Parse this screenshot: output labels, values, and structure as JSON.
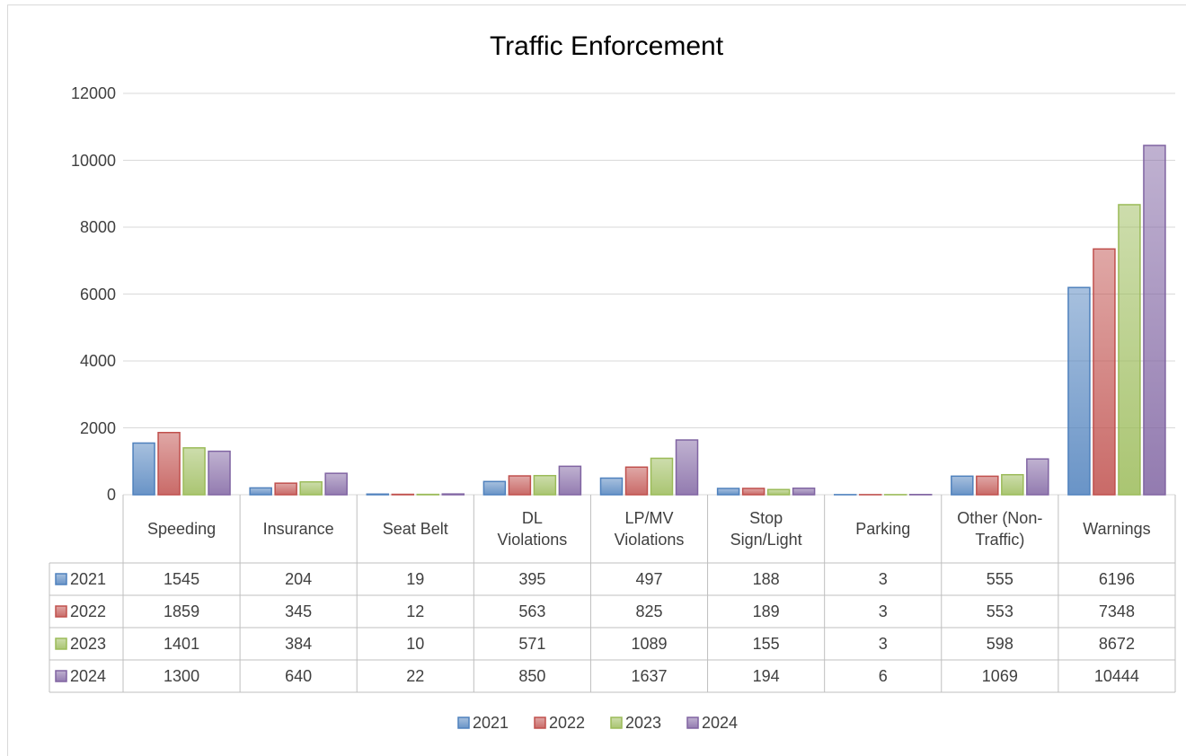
{
  "chart_data": {
    "type": "bar",
    "title": "Traffic Enforcement",
    "categories": [
      "Speeding",
      "Insurance",
      "Seat Belt",
      "DL Violations",
      "LP/MV Violations",
      "Stop Sign/Light",
      "Parking",
      "Other (Non-Traffic)",
      "Warnings"
    ],
    "series": [
      {
        "name": "2021",
        "color": "#4f81bd",
        "values": [
          1545,
          204,
          19,
          395,
          497,
          188,
          3,
          555,
          6196
        ]
      },
      {
        "name": "2022",
        "color": "#c0504d",
        "values": [
          1859,
          345,
          12,
          563,
          825,
          189,
          3,
          553,
          7348
        ]
      },
      {
        "name": "2023",
        "color": "#9bbb59",
        "values": [
          1401,
          384,
          10,
          571,
          1089,
          155,
          3,
          598,
          8672
        ]
      },
      {
        "name": "2024",
        "color": "#8064a2",
        "values": [
          1300,
          640,
          22,
          850,
          1637,
          194,
          6,
          1069,
          10444
        ]
      }
    ],
    "ylim": [
      0,
      12000
    ],
    "yticks": [
      0,
      2000,
      4000,
      6000,
      8000,
      10000,
      12000
    ],
    "grid": true,
    "legend": "bottom"
  }
}
